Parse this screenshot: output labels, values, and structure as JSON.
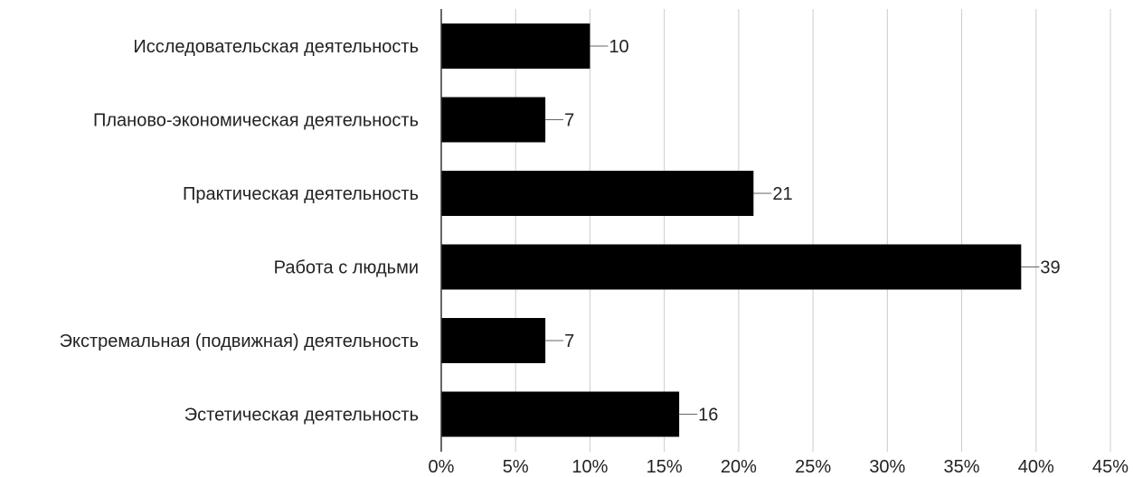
{
  "chart_data": {
    "type": "bar",
    "orientation": "horizontal",
    "title": "",
    "xlabel": "",
    "ylabel": "",
    "categories": [
      "Исследовательская деятельность",
      "Планово-экономическая деятельность",
      "Практическая деятельность",
      "Работа с людьми",
      "Экстремальная (подвижная) деятельность",
      "Эстетическая деятельность"
    ],
    "values": [
      10,
      7,
      21,
      39,
      7,
      16
    ],
    "data_labels": [
      "10",
      "7",
      "21",
      "39",
      "7",
      "16"
    ],
    "xlim": [
      0,
      45
    ],
    "xticks": [
      0,
      5,
      10,
      15,
      20,
      25,
      30,
      35,
      40,
      45
    ],
    "xtick_labels": [
      "0%",
      "5%",
      "10%",
      "15%",
      "20%",
      "25%",
      "30%",
      "35%",
      "40%",
      "45%"
    ],
    "grid": true,
    "legend": "none",
    "colors": {
      "bar": "#000000",
      "grid": "#cccccc",
      "axis": "#333333",
      "text": "#222222",
      "leader": "#666666"
    }
  }
}
